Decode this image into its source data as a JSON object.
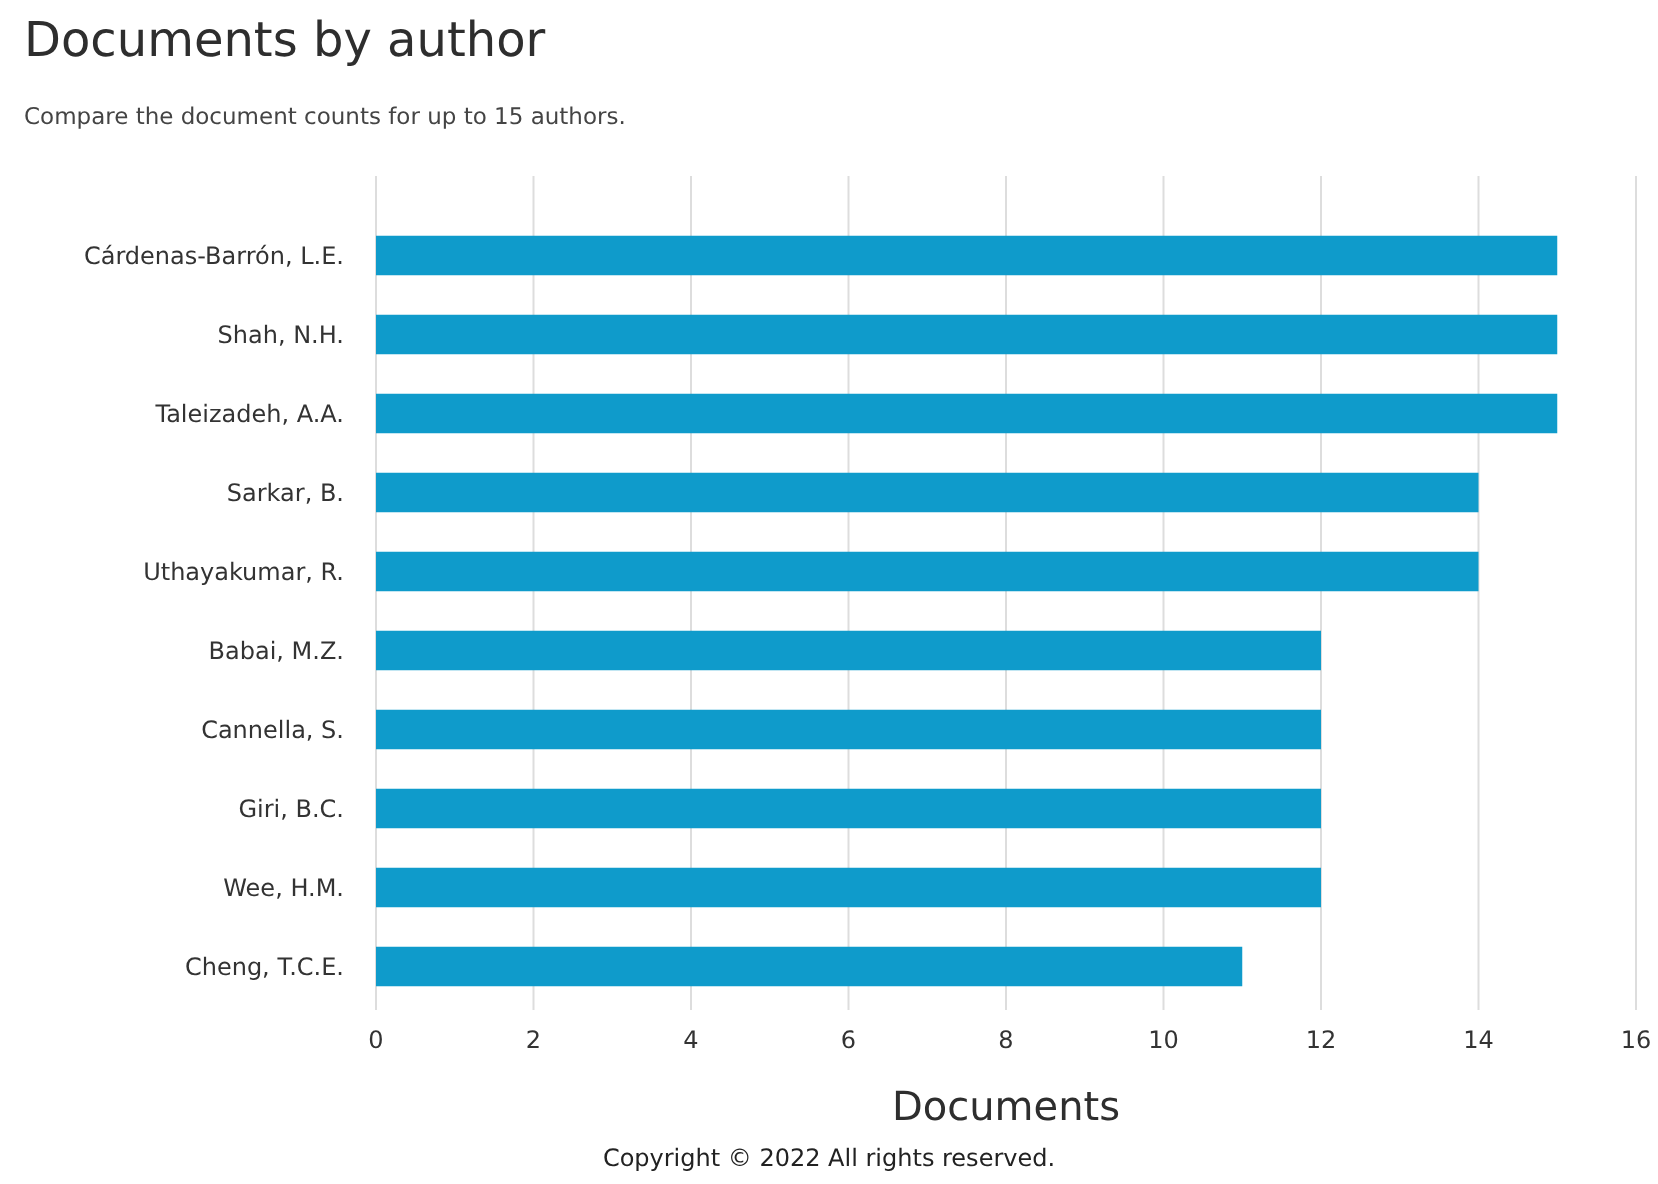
{
  "chart_data": {
    "type": "bar",
    "orientation": "horizontal",
    "title": "Documents by author",
    "subtitle": "Compare the document counts for up to 15 authors.",
    "xlabel": "Documents",
    "categories": [
      "Cárdenas-Barrón, L.E.",
      "Shah, N.H.",
      "Taleizadeh, A.A.",
      "Sarkar, B.",
      "Uthayakumar, R.",
      "Babai, M.Z.",
      "Cannella, S.",
      "Giri, B.C.",
      "Wee, H.M.",
      "Cheng, T.C.E."
    ],
    "values": [
      15,
      15,
      15,
      14,
      14,
      12,
      12,
      12,
      12,
      11
    ],
    "color": "#0f9bcb",
    "xlim": [
      0,
      16
    ],
    "xticks": [
      0,
      2,
      4,
      6,
      8,
      10,
      12,
      14,
      16
    ],
    "grid": "x",
    "annotations": [
      "Copyright © 2022 All rights reserved."
    ]
  }
}
